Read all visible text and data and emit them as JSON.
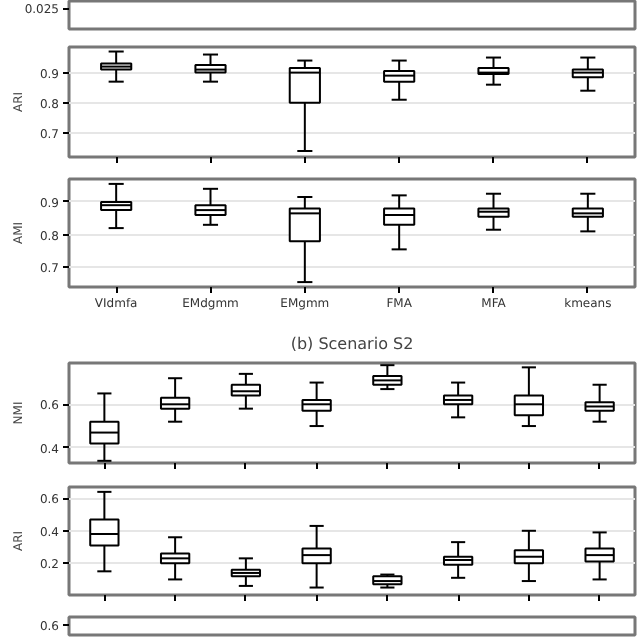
{
  "chart_data": [
    {
      "type": "other",
      "annotations": [
        "0.025"
      ]
    },
    {
      "type": "box",
      "categories": [
        null,
        null,
        null,
        null,
        null,
        null
      ],
      "ylabel": "ARI",
      "ylim": [
        0.62,
        0.985
      ],
      "yticks": [
        0.7,
        0.8,
        0.9
      ],
      "grid": "y",
      "tick_labels": "y",
      "boxes": [
        {
          "low": 0.87,
          "q1": 0.91,
          "median": 0.92,
          "q3": 0.93,
          "high": 0.97
        },
        {
          "low": 0.87,
          "q1": 0.9,
          "median": 0.91,
          "q3": 0.925,
          "high": 0.96
        },
        {
          "low": 0.64,
          "q1": 0.8,
          "median": 0.9,
          "q3": 0.915,
          "high": 0.94
        },
        {
          "low": 0.81,
          "q1": 0.87,
          "median": 0.89,
          "q3": 0.905,
          "high": 0.94
        },
        {
          "low": 0.86,
          "q1": 0.895,
          "median": 0.9,
          "q3": 0.915,
          "high": 0.95
        },
        {
          "low": 0.84,
          "q1": 0.885,
          "median": 0.9,
          "q3": 0.91,
          "high": 0.95
        }
      ]
    },
    {
      "type": "box",
      "categories": [
        "VIdmfa",
        "EMdgmm",
        "EMgmm",
        "FMA",
        "MFA",
        "kmeans"
      ],
      "ylabel": "AMI",
      "ylim": [
        0.64,
        0.97
      ],
      "yticks": [
        0.7,
        0.8,
        0.9
      ],
      "grid": "y",
      "boxes": [
        {
          "low": 0.82,
          "q1": 0.875,
          "median": 0.89,
          "q3": 0.9,
          "high": 0.955
        },
        {
          "low": 0.83,
          "q1": 0.86,
          "median": 0.875,
          "q3": 0.89,
          "high": 0.94
        },
        {
          "low": 0.655,
          "q1": 0.78,
          "median": 0.865,
          "q3": 0.88,
          "high": 0.915
        },
        {
          "low": 0.755,
          "q1": 0.83,
          "median": 0.86,
          "q3": 0.88,
          "high": 0.92
        },
        {
          "low": 0.815,
          "q1": 0.855,
          "median": 0.87,
          "q3": 0.88,
          "high": 0.925
        },
        {
          "low": 0.81,
          "q1": 0.855,
          "median": 0.865,
          "q3": 0.88,
          "high": 0.925
        }
      ]
    },
    {
      "type": "box",
      "title": "(b) Scenario S2",
      "categories": [
        null,
        null,
        null,
        null,
        null,
        null,
        null,
        null
      ],
      "ylabel": "NMI",
      "ylim": [
        0.33,
        0.79
      ],
      "yticks": [
        0.4,
        0.6
      ],
      "grid": "y",
      "tick_labels": "y",
      "boxes": [
        {
          "low": 0.34,
          "q1": 0.42,
          "median": 0.47,
          "q3": 0.52,
          "high": 0.65
        },
        {
          "low": 0.52,
          "q1": 0.58,
          "median": 0.6,
          "q3": 0.63,
          "high": 0.72
        },
        {
          "low": 0.58,
          "q1": 0.64,
          "median": 0.66,
          "q3": 0.69,
          "high": 0.74
        },
        {
          "low": 0.5,
          "q1": 0.57,
          "median": 0.6,
          "q3": 0.62,
          "high": 0.7
        },
        {
          "low": 0.67,
          "q1": 0.69,
          "median": 0.71,
          "q3": 0.73,
          "high": 0.78
        },
        {
          "low": 0.54,
          "q1": 0.6,
          "median": 0.62,
          "q3": 0.64,
          "high": 0.7
        },
        {
          "low": 0.5,
          "q1": 0.55,
          "median": 0.6,
          "q3": 0.64,
          "high": 0.77
        },
        {
          "low": 0.52,
          "q1": 0.57,
          "median": 0.59,
          "q3": 0.61,
          "high": 0.69
        }
      ]
    },
    {
      "type": "box",
      "categories": [
        null,
        null,
        null,
        null,
        null,
        null,
        null,
        null
      ],
      "ylabel": "ARI",
      "ylim": [
        0.004,
        0.67
      ],
      "yticks": [
        0.2,
        0.4,
        0.6
      ],
      "grid": "y",
      "tick_labels": "y",
      "boxes": [
        {
          "low": 0.15,
          "q1": 0.31,
          "median": 0.38,
          "q3": 0.47,
          "high": 0.64
        },
        {
          "low": 0.1,
          "q1": 0.2,
          "median": 0.23,
          "q3": 0.26,
          "high": 0.36
        },
        {
          "low": 0.06,
          "q1": 0.12,
          "median": 0.14,
          "q3": 0.16,
          "high": 0.23
        },
        {
          "low": 0.05,
          "q1": 0.2,
          "median": 0.25,
          "q3": 0.29,
          "high": 0.43
        },
        {
          "low": 0.05,
          "q1": 0.07,
          "median": 0.09,
          "q3": 0.12,
          "high": 0.13
        },
        {
          "low": 0.11,
          "q1": 0.19,
          "median": 0.22,
          "q3": 0.24,
          "high": 0.33
        },
        {
          "low": 0.09,
          "q1": 0.2,
          "median": 0.24,
          "q3": 0.28,
          "high": 0.4
        },
        {
          "low": 0.1,
          "q1": 0.21,
          "median": 0.25,
          "q3": 0.29,
          "high": 0.39
        }
      ]
    },
    {
      "type": "other",
      "annotations": [
        "0.6"
      ]
    }
  ]
}
